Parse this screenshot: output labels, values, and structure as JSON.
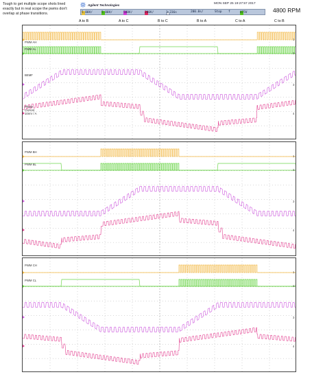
{
  "annotation": {
    "note": "Tough to get multiple scope shots lined exactly but in real scope the pwms don't overlap at phase transitions.",
    "rpm": "4800 RPM"
  },
  "scope_header": {
    "brand": "Agilent Technologies",
    "datetime": "MON SEP 25 19:27:57 2017",
    "channels": [
      {
        "num": "1",
        "scale": "5.00V/",
        "color": "#e8c23a"
      },
      {
        "num": "2",
        "scale": "5.00V/",
        "color": "#52c41a"
      },
      {
        "num": "3",
        "scale": "500V/",
        "color": "#d33cd6"
      },
      {
        "num": "4",
        "scale": "200V/",
        "color": "#e0245e"
      }
    ],
    "trigger_pos": "1.236s",
    "timebase": "200.0s/",
    "run_state": "Stop",
    "trigger_level": "875V",
    "trigger_chip_color": "#52c41a"
  },
  "markers": [
    "A to B",
    "A to C",
    "B to C",
    "B to A",
    "C to A",
    "C to B"
  ],
  "colors": {
    "pwm_high": "#f2b53c",
    "pwm_low": "#5fd13a",
    "bemf": "#cc55dd",
    "current": "#e23c8e",
    "grid": "#9a9a9a"
  },
  "panels": [
    {
      "labels": [
        "PWM AH",
        "PWM AL",
        "BEMF",
        "Phase Current 10mV / A"
      ]
    },
    {
      "labels": [
        "PWM BH",
        "PWM BL",
        "",
        ""
      ]
    },
    {
      "labels": [
        "PWM CH",
        "PWM CL",
        "",
        ""
      ]
    }
  ],
  "right_labels": [
    "1",
    "2",
    "3",
    "4"
  ]
}
